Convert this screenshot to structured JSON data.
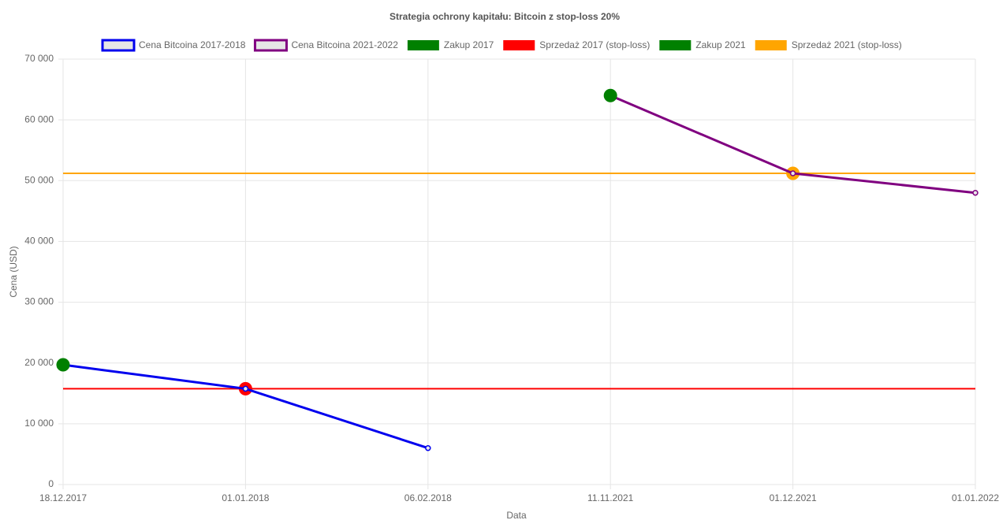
{
  "chart_data": {
    "type": "line",
    "title": "Strategia ochrony kapitału: Bitcoin z stop-loss 20%",
    "x_label": "Data",
    "y_label": "Cena (USD)",
    "categories": [
      "18.12.2017",
      "01.01.2018",
      "06.02.2018",
      "11.11.2021",
      "01.12.2021",
      "01.01.2022"
    ],
    "series": [
      {
        "name": "Cena Bitcoina 2017-2018",
        "color": "#0000ee",
        "style": "line",
        "values": [
          19700,
          15760,
          6000,
          null,
          null,
          null
        ]
      },
      {
        "name": "Cena Bitcoina 2021-2022",
        "color": "#800080",
        "style": "line",
        "values": [
          null,
          null,
          null,
          64000,
          51200,
          48000
        ]
      },
      {
        "name": "Zakup 2017",
        "color": "#008000",
        "style": "point",
        "values": [
          19700,
          null,
          null,
          null,
          null,
          null
        ]
      },
      {
        "name": "Sprzedaż 2017 (stop-loss)",
        "color": "#ff0000",
        "style": "level",
        "values": [
          15760,
          15760,
          15760,
          15760,
          15760,
          15760
        ]
      },
      {
        "name": "Zakup 2021",
        "color": "#008000",
        "style": "point",
        "values": [
          null,
          null,
          null,
          64000,
          null,
          null
        ]
      },
      {
        "name": "Sprzedaż 2021 (stop-loss)",
        "color": "#ffa500",
        "style": "level",
        "values": [
          51200,
          51200,
          51200,
          51200,
          51200,
          51200
        ]
      }
    ],
    "ylim": [
      0,
      70000
    ],
    "yticks": [
      0,
      {
        "value": 10000,
        "label": "10 000"
      },
      {
        "value": 20000,
        "label": "20 000"
      },
      {
        "value": 30000,
        "label": "30 000"
      },
      {
        "value": 40000,
        "label": "40 000"
      },
      {
        "value": 50000,
        "label": "50 000"
      },
      {
        "value": 60000,
        "label": "60 000"
      },
      {
        "value": 70000,
        "label": "70 000"
      }
    ],
    "grid": true,
    "legend": "top"
  }
}
